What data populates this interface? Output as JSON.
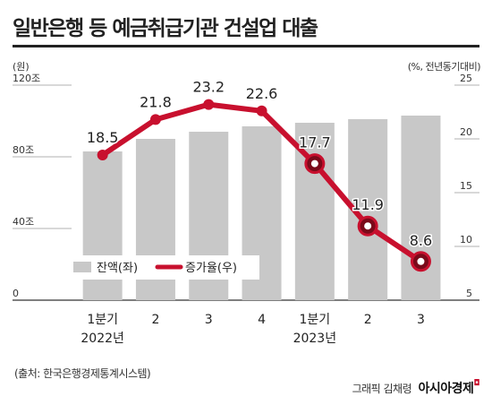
{
  "title": "일반은행 등 예금취급기관 건설업 대출",
  "source": "(출처: 한국은행경제통계시스템)",
  "credit": "그래픽 김채령",
  "brand": "아시아경제",
  "colors": {
    "bar": "#c8c8c8",
    "line": "#c8102e",
    "title": "#222222",
    "text": "#333333"
  },
  "chart_data": {
    "type": "bar",
    "categories": [
      "1분기 2022년",
      "2",
      "3",
      "4",
      "1분기 2023년",
      "2",
      "3"
    ],
    "category_lines": [
      [
        "1분기",
        "2022년"
      ],
      [
        "2"
      ],
      [
        "3"
      ],
      [
        "4"
      ],
      [
        "1분기",
        "2023년"
      ],
      [
        "2"
      ],
      [
        "3"
      ]
    ],
    "y_left": {
      "unit": "(원)",
      "ticks": [
        "120조",
        "80조",
        "40조",
        "0"
      ],
      "ylim": [
        0,
        120
      ]
    },
    "y_right": {
      "unit": "(%, 전년동기대비)",
      "ticks": [
        "25",
        "20",
        "15",
        "10",
        "5"
      ],
      "ylim": [
        5,
        25
      ]
    },
    "series": [
      {
        "name": "잔액(좌)",
        "type": "bar",
        "axis": "left",
        "values": [
          83,
          90,
          94,
          97,
          99,
          101,
          103
        ]
      },
      {
        "name": "증가율(우)",
        "type": "line",
        "axis": "right",
        "values": [
          18.5,
          21.8,
          23.2,
          22.6,
          17.7,
          11.9,
          8.6
        ],
        "labels": [
          "18.5",
          "21.8",
          "23.2",
          "22.6",
          "17.7",
          "11.9",
          "8.6"
        ]
      }
    ],
    "legend": {
      "position": "bottom-left",
      "items": [
        "잔액(좌)",
        "증가율(우)"
      ]
    },
    "grid": false
  }
}
